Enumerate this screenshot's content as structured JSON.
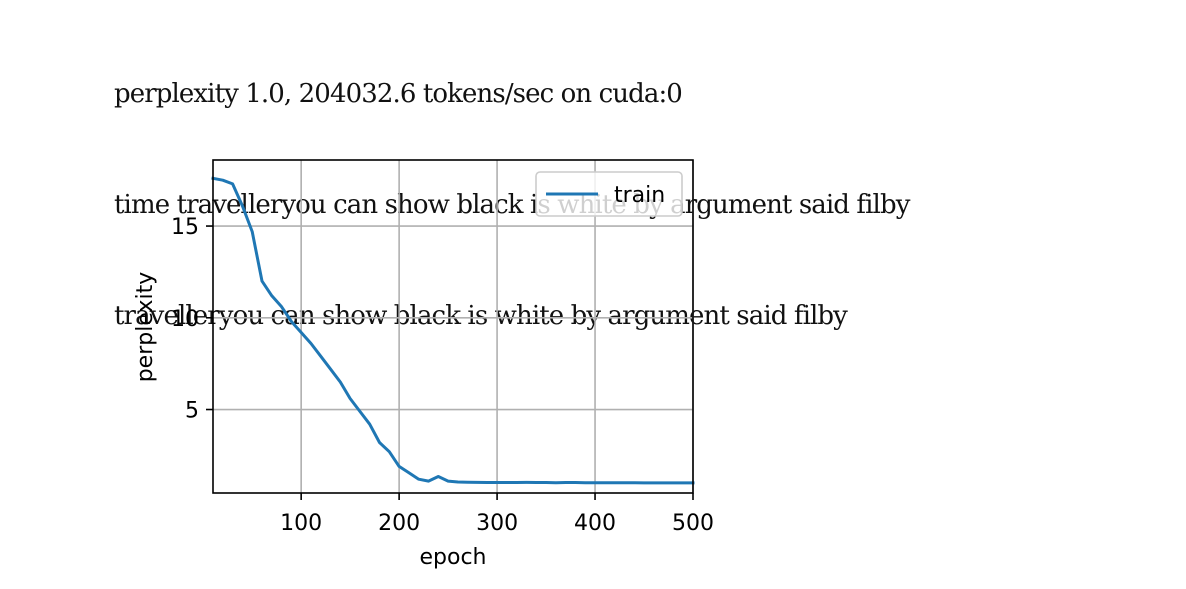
{
  "output_lines": [
    "perplexity 1.0, 204032.6 tokens/sec on cuda:0",
    "time travelleryou can show black is white by argument said filby",
    "travelleryou can show black is white by argument said filby"
  ],
  "chart_data": {
    "type": "line",
    "title": "",
    "xlabel": "epoch",
    "ylabel": "perplexity",
    "xlim": [
      10,
      500
    ],
    "ylim": [
      0.45,
      18.6
    ],
    "xticks": [
      100,
      200,
      300,
      400,
      500
    ],
    "yticks": [
      5,
      10,
      15
    ],
    "grid": true,
    "legend": "top-right",
    "series": [
      {
        "name": "train",
        "color": "#1f77b4",
        "x": [
          10,
          20,
          30,
          40,
          50,
          60,
          70,
          80,
          90,
          100,
          110,
          120,
          130,
          140,
          150,
          160,
          170,
          180,
          190,
          200,
          210,
          220,
          230,
          240,
          250,
          260,
          270,
          280,
          290,
          300,
          310,
          320,
          330,
          340,
          350,
          360,
          370,
          380,
          390,
          400,
          410,
          420,
          430,
          440,
          450,
          460,
          470,
          480,
          490,
          500
        ],
        "values": [
          17.6,
          17.5,
          17.3,
          16.1,
          14.7,
          12.0,
          11.2,
          10.6,
          9.8,
          9.2,
          8.6,
          7.9,
          7.2,
          6.5,
          5.6,
          4.9,
          4.2,
          3.2,
          2.7,
          1.9,
          1.55,
          1.2,
          1.1,
          1.35,
          1.1,
          1.05,
          1.04,
          1.03,
          1.02,
          1.02,
          1.02,
          1.02,
          1.03,
          1.02,
          1.02,
          1.01,
          1.02,
          1.02,
          1.01,
          1.01,
          1.01,
          1.01,
          1.01,
          1.01,
          1.0,
          1.0,
          1.0,
          1.0,
          1.0,
          1.0
        ]
      }
    ]
  }
}
